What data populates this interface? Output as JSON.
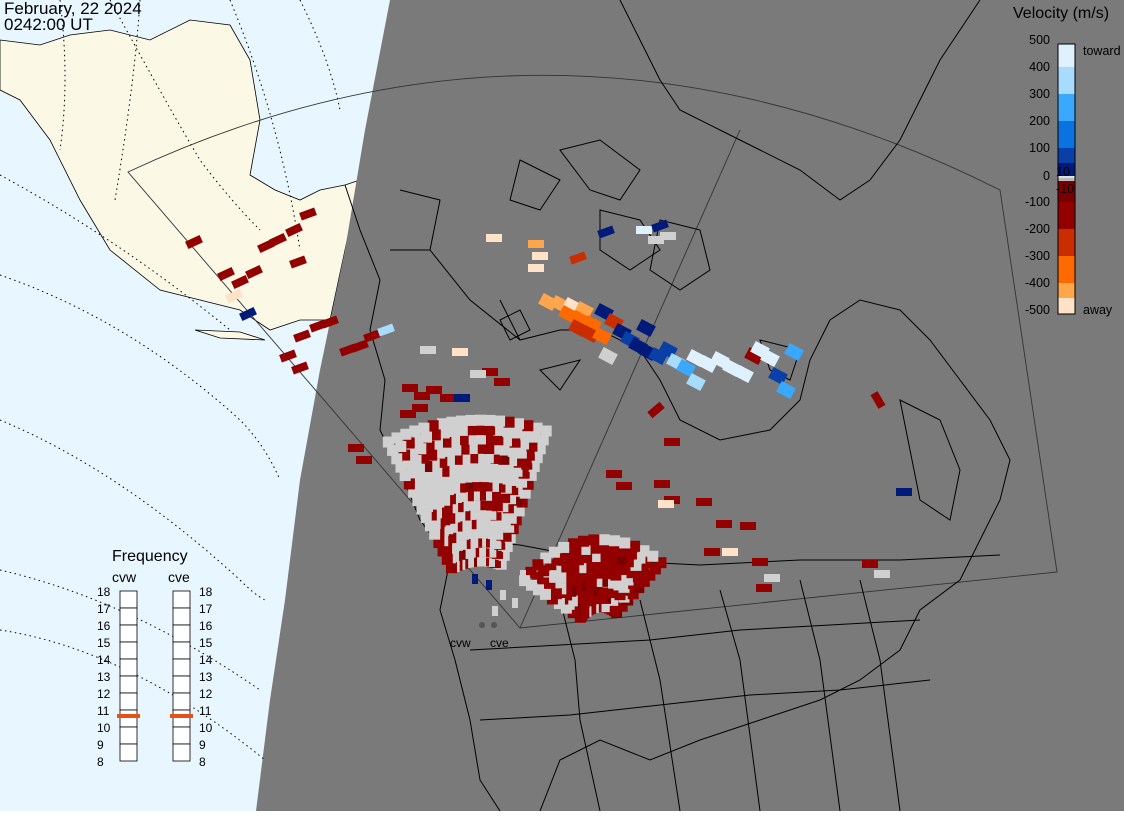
{
  "header": {
    "date": "February, 22 2024",
    "time": "0242:00 UT"
  },
  "velocity_scale": {
    "title": "Velocity (m/s)",
    "ticks": [
      "500",
      "400",
      "300",
      "200",
      "100",
      "10",
      "0",
      "-10",
      "-100",
      "-200",
      "-300",
      "-400",
      "-500"
    ],
    "toward_label": "toward",
    "away_label": "away",
    "colors": {
      "v500": "#dff0ff",
      "v400": "#a8dcff",
      "v300": "#3aa8ff",
      "v200": "#0a73e0",
      "v100": "#0a3fa8",
      "v10": "#001a7a",
      "n10": "#7a0000",
      "n100": "#930000",
      "n200": "#c92d00",
      "n300": "#ff6a00",
      "n400": "#ffa64d",
      "n500": "#ffe2c8"
    }
  },
  "frequency": {
    "title": "Frequency",
    "radars": [
      {
        "name": "cvw",
        "value": 11
      },
      {
        "name": "cve",
        "value": 11
      }
    ],
    "scale": [
      "18",
      "17",
      "16",
      "15",
      "14",
      "13",
      "12",
      "11",
      "10",
      "9",
      "8"
    ],
    "marker_color": "#e8501a"
  },
  "stations": [
    {
      "name": "cvw"
    },
    {
      "name": "cve"
    }
  ],
  "map": {
    "night_color": "#7a7a7a",
    "ocean_color": "#e8f6ff",
    "land_day_color": "#fbf8e6",
    "ground_scatter_color": "#d0d0d0"
  }
}
